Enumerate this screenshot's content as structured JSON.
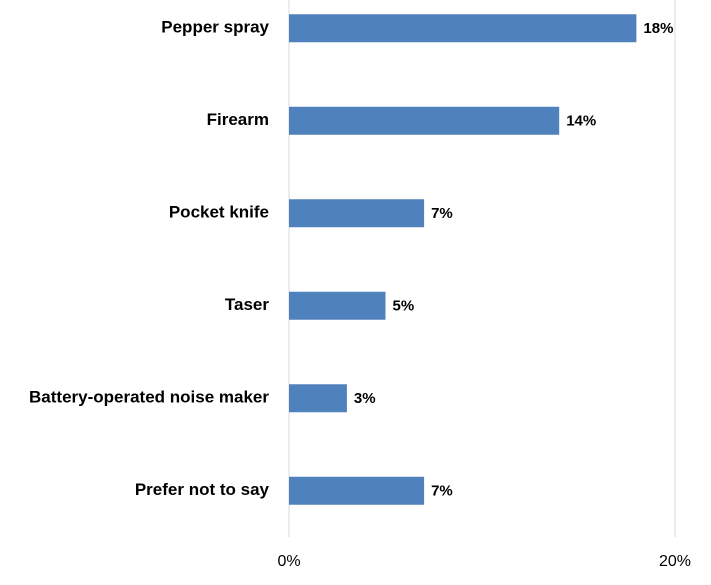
{
  "chart_data": {
    "type": "hbar",
    "categories": [
      "Pepper spray",
      "Firearm",
      "Pocket knife",
      "Taser",
      "Battery-operated noise maker",
      "Prefer not to say"
    ],
    "values": [
      18,
      14,
      7,
      5,
      3,
      7
    ],
    "value_labels": [
      "18%",
      "14%",
      "7%",
      "5%",
      "3%",
      "7%"
    ],
    "color": "#4f81bd",
    "xlim": [
      0,
      20
    ],
    "xticks": [
      {
        "value": 0,
        "label": "0%"
      },
      {
        "value": 20,
        "label": "20%"
      }
    ],
    "grid": true
  }
}
